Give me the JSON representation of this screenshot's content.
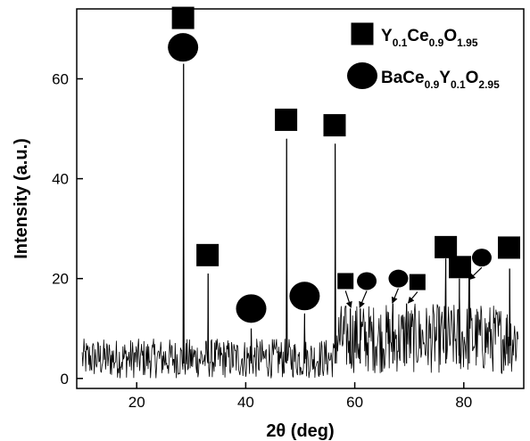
{
  "chart_data": {
    "type": "line",
    "xlabel": "2θ (deg)",
    "ylabel": "Intensity (a.u.)",
    "xlim": [
      9,
      91
    ],
    "ylim": [
      -2,
      74
    ],
    "xticks": [
      20,
      40,
      60,
      80
    ],
    "yticks": [
      0,
      20,
      40,
      60
    ],
    "grid": false,
    "legend_position": "top-right",
    "line_color": "#000000",
    "noise_baseline": [
      {
        "x_from": 10,
        "x_to": 56.5,
        "min": 0,
        "max": 8
      },
      {
        "x_from": 56.5,
        "x_to": 90,
        "min": 1,
        "max": 15
      }
    ],
    "peaks": [
      {
        "x": 28.6,
        "y": 63
      },
      {
        "x": 33.1,
        "y": 21
      },
      {
        "x": 41.0,
        "y": 10
      },
      {
        "x": 47.5,
        "y": 48
      },
      {
        "x": 50.8,
        "y": 13
      },
      {
        "x": 56.4,
        "y": 47
      },
      {
        "x": 59.2,
        "y": 14
      },
      {
        "x": 61.0,
        "y": 14
      },
      {
        "x": 67.0,
        "y": 15
      },
      {
        "x": 69.5,
        "y": 15
      },
      {
        "x": 76.7,
        "y": 24
      },
      {
        "x": 79.2,
        "y": 20
      },
      {
        "x": 81.0,
        "y": 22
      },
      {
        "x": 88.4,
        "y": 22
      }
    ],
    "series": [
      {
        "marker": "square",
        "label_parts": [
          {
            "text": "Y",
            "sub": false
          },
          {
            "text": "0.1",
            "sub": true
          },
          {
            "text": "Ce",
            "sub": false
          },
          {
            "text": "0.9",
            "sub": true
          },
          {
            "text": "O",
            "sub": false
          },
          {
            "text": "1.95",
            "sub": true
          }
        ]
      },
      {
        "marker": "circle",
        "label_parts": [
          {
            "text": "BaCe",
            "sub": false
          },
          {
            "text": "0.9",
            "sub": true
          },
          {
            "text": "Y",
            "sub": false
          },
          {
            "text": "0.1",
            "sub": true
          },
          {
            "text": "O",
            "sub": false
          },
          {
            "text": "2.95",
            "sub": true
          }
        ]
      }
    ],
    "annotations": [
      {
        "marker": "square",
        "x": 28.5,
        "y": 72.2,
        "arrow_to": null
      },
      {
        "marker": "circle",
        "x": 28.5,
        "y": 66.3,
        "arrow_to": null
      },
      {
        "marker": "square",
        "x": 33.0,
        "y": 24.7,
        "arrow_to": null
      },
      {
        "marker": "circle",
        "x": 41.0,
        "y": 14.0,
        "arrow_to": null
      },
      {
        "marker": "square",
        "x": 47.4,
        "y": 51.8,
        "arrow_to": null
      },
      {
        "marker": "circle",
        "x": 50.8,
        "y": 16.5,
        "arrow_to": null
      },
      {
        "marker": "square",
        "x": 56.3,
        "y": 50.7,
        "arrow_to": null
      },
      {
        "marker": "square",
        "x": 58.3,
        "y": 19.5,
        "arrow_to": [
          59.3,
          14.2
        ]
      },
      {
        "marker": "circle",
        "x": 62.2,
        "y": 19.5,
        "arrow_to": [
          60.9,
          14.2
        ]
      },
      {
        "marker": "circle",
        "x": 68.0,
        "y": 20.0,
        "arrow_to": [
          66.9,
          15.1
        ]
      },
      {
        "marker": "square",
        "x": 71.5,
        "y": 19.3,
        "arrow_to": [
          69.8,
          15.1
        ]
      },
      {
        "marker": "square",
        "x": 76.7,
        "y": 26.3,
        "arrow_to": null
      },
      {
        "marker": "square",
        "x": 79.3,
        "y": 22.3,
        "arrow_to": null
      },
      {
        "marker": "circle",
        "x": 83.3,
        "y": 24.2,
        "arrow_to": [
          81.0,
          19.8
        ]
      },
      {
        "marker": "square",
        "x": 88.3,
        "y": 26.2,
        "arrow_to": null
      }
    ]
  }
}
